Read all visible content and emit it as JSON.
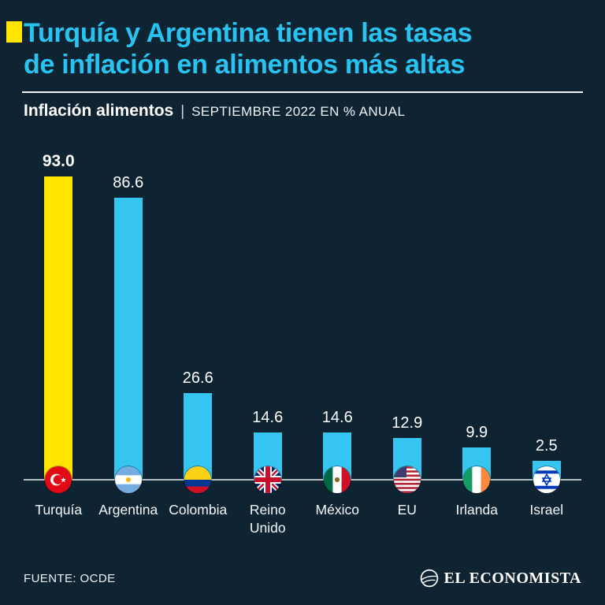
{
  "header": {
    "title_lines": [
      "Turquía y Argentina tienen las tasas",
      "de inflación en alimentos más altas"
    ],
    "accent_color": "#ffe400",
    "title_color": "#29c3f2"
  },
  "subtitle": {
    "lead": "Inflación alimentos",
    "separator": "|",
    "detail": "SEPTIEMBRE 2022 EN % ANUAL"
  },
  "chart_data": {
    "type": "bar",
    "title": "Inflación alimentos — Septiembre 2022 en % anual",
    "categories": [
      "Turquía",
      "Argentina",
      "Colombia",
      "Reino Unido",
      "México",
      "EU",
      "Irlanda",
      "Israel"
    ],
    "values": [
      93.0,
      86.6,
      26.6,
      14.6,
      14.6,
      12.9,
      9.9,
      2.5
    ],
    "value_labels": [
      "93.0",
      "86.6",
      "26.6",
      "14.6",
      "14.6",
      "12.9",
      "9.9",
      "2.5"
    ],
    "bar_colors": [
      "#ffe400",
      "#35c5f0",
      "#35c5f0",
      "#35c5f0",
      "#35c5f0",
      "#35c5f0",
      "#35c5f0",
      "#35c5f0"
    ],
    "flags": [
      "turkey",
      "argentina",
      "colombia",
      "uk",
      "mexico",
      "usa",
      "ireland",
      "israel"
    ],
    "xlabel": "",
    "ylabel": "% anual",
    "ylim": [
      0,
      93
    ],
    "grid": false,
    "legend": "none"
  },
  "footer": {
    "source": "FUENTE: OCDE",
    "brand": "EL ECONOMISTA"
  }
}
